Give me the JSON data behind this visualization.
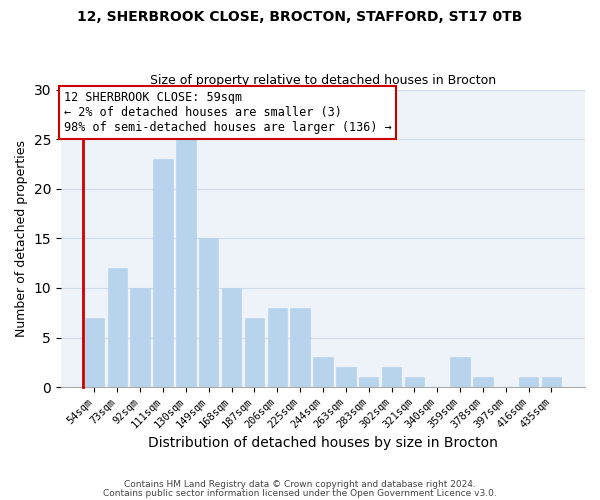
{
  "title1": "12, SHERBROOK CLOSE, BROCTON, STAFFORD, ST17 0TB",
  "title2": "Size of property relative to detached houses in Brocton",
  "xlabel": "Distribution of detached houses by size in Brocton",
  "ylabel": "Number of detached properties",
  "bar_labels": [
    "54sqm",
    "73sqm",
    "92sqm",
    "111sqm",
    "130sqm",
    "149sqm",
    "168sqm",
    "187sqm",
    "206sqm",
    "225sqm",
    "244sqm",
    "263sqm",
    "283sqm",
    "302sqm",
    "321sqm",
    "340sqm",
    "359sqm",
    "378sqm",
    "397sqm",
    "416sqm",
    "435sqm"
  ],
  "bar_values": [
    7,
    12,
    10,
    23,
    25,
    15,
    10,
    7,
    8,
    8,
    3,
    2,
    1,
    2,
    1,
    0,
    3,
    1,
    0,
    1,
    1
  ],
  "bar_color_normal": "#b8d4ec",
  "annotation_line1": "12 SHERBROOK CLOSE: 59sqm",
  "annotation_line2": "← 2% of detached houses are smaller (3)",
  "annotation_line3": "98% of semi-detached houses are larger (136) →",
  "annotation_edge_color": "#cc0000",
  "red_line_color": "#cc0000",
  "footer1": "Contains HM Land Registry data © Crown copyright and database right 2024.",
  "footer2": "Contains public sector information licensed under the Open Government Licence v3.0.",
  "grid_color": "#d0dce8",
  "bg_color": "#ffffff",
  "plot_bg_color": "#eef3fa",
  "ylim": [
    0,
    30
  ],
  "yticks": [
    0,
    5,
    10,
    15,
    20,
    25,
    30
  ]
}
